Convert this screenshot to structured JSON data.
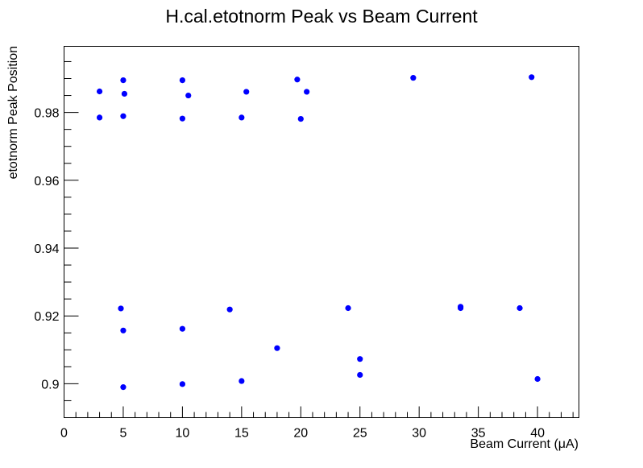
{
  "chart_data": {
    "type": "scatter",
    "title": "H.cal.etotnorm Peak vs Beam Current",
    "xlabel": "Beam Current (μA)",
    "ylabel": "etotnorm Peak Position",
    "xlim": [
      0,
      43.5
    ],
    "ylim": [
      0.89,
      0.9995
    ],
    "x_ticks": [
      0,
      5,
      10,
      15,
      20,
      25,
      30,
      35,
      40
    ],
    "x_tick_labels": [
      "0",
      "5",
      "10",
      "15",
      "20",
      "25",
      "30",
      "35",
      "40"
    ],
    "y_ticks": [
      0.9,
      0.92,
      0.94,
      0.96,
      0.98
    ],
    "y_tick_labels": [
      "0.9",
      "0.92",
      "0.94",
      "0.96",
      "0.98"
    ],
    "grid": false,
    "legend": "none",
    "marker_color": "#0000ff",
    "series": [
      {
        "points": [
          [
            3.0,
            0.9862
          ],
          [
            3.0,
            0.9785
          ],
          [
            5.0,
            0.9895
          ],
          [
            5.1,
            0.9855
          ],
          [
            5.0,
            0.9789
          ],
          [
            10.0,
            0.9895
          ],
          [
            10.0,
            0.9782
          ],
          [
            10.5,
            0.985
          ],
          [
            15.4,
            0.9861
          ],
          [
            15.0,
            0.9785
          ],
          [
            19.7,
            0.9897
          ],
          [
            20.5,
            0.9861
          ],
          [
            20.0,
            0.9781
          ],
          [
            29.5,
            0.9902
          ],
          [
            39.5,
            0.9904
          ],
          [
            4.8,
            0.9222
          ],
          [
            5.0,
            0.9157
          ],
          [
            5.0,
            0.899
          ],
          [
            10.0,
            0.9162
          ],
          [
            10.0,
            0.8999
          ],
          [
            14.0,
            0.9219
          ],
          [
            15.0,
            0.9008
          ],
          [
            18.0,
            0.9105
          ],
          [
            24.0,
            0.9223
          ],
          [
            25.0,
            0.9073
          ],
          [
            25.0,
            0.9026
          ],
          [
            33.5,
            0.9227
          ],
          [
            33.5,
            0.9223
          ],
          [
            38.5,
            0.9223
          ],
          [
            40.0,
            0.9014
          ]
        ]
      }
    ]
  }
}
